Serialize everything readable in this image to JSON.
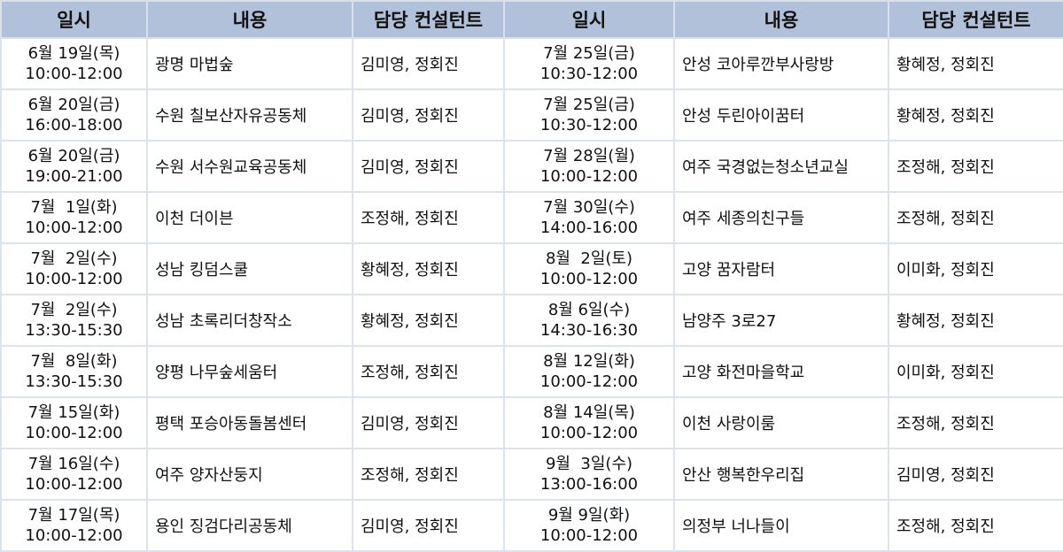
{
  "headers": [
    "일시",
    "내용",
    "담당 컨설턴트",
    "일시",
    "내용",
    "담당 컨설턴트"
  ],
  "rows": [
    {
      "left": {
        "date": "6월 19일(목)",
        "time": "10:00-12:00",
        "content": "광명 마법숲",
        "consultant": "김미영, 정회진"
      },
      "right": {
        "date": "7월 25일(금)",
        "time": "10:30-12:00",
        "content": "안성 코아루깐부사랑방",
        "consultant": "황혜정, 정회진"
      }
    },
    {
      "left": {
        "date": "6월 20일(금)",
        "time": "16:00-18:00",
        "content": "수원 칠보산자유공동체",
        "consultant": "김미영, 정회진"
      },
      "right": {
        "date": "7월 25일(금)",
        "time": "10:30-12:00",
        "content": "안성 두린아이꿈터",
        "consultant": "황혜정, 정회진"
      }
    },
    {
      "left": {
        "date": "6월 20일(금)",
        "time": "19:00-21:00",
        "content": "수원 서수원교육공동체",
        "consultant": "김미영, 정회진"
      },
      "right": {
        "date": "7월 28일(월)",
        "time": "10:00-12:00",
        "content": "여주 국경없는청소년교실",
        "consultant": "조정해, 정회진"
      }
    },
    {
      "left": {
        "date": "7월  1일(화)",
        "time": "10:00-12:00",
        "content": "이천 더이븐",
        "consultant": "조정해, 정회진"
      },
      "right": {
        "date": "7월 30일(수)",
        "time": "14:00-16:00",
        "content": "여주 세종의친구들",
        "consultant": "조정해, 정회진"
      }
    },
    {
      "left": {
        "date": "7월  2일(수)",
        "time": "10:00-12:00",
        "content": "성남 킹덤스쿨",
        "consultant": "황혜정, 정회진"
      },
      "right": {
        "date": "8월  2일(토)",
        "time": "10:00-12:00",
        "content": "고양 꿈자람터",
        "consultant": "이미화, 정회진"
      }
    },
    {
      "left": {
        "date": "7월  2일(수)",
        "time": "13:30-15:30",
        "content": "성남 초록리더창작소",
        "consultant": "황혜정, 정회진"
      },
      "right": {
        "date": "8월 6일(수)",
        "time": "14:30-16:30",
        "content": "남양주 3로27",
        "consultant": "황혜정, 정회진"
      }
    },
    {
      "left": {
        "date": "7월  8일(화)",
        "time": "13:30-15:30",
        "content": "양평 나무숲세움터",
        "consultant": "조정해, 정회진"
      },
      "right": {
        "date": "8월 12일(화)",
        "time": "10:00-12:00",
        "content": "고양 화전마을학교",
        "consultant": "이미화, 정회진"
      }
    },
    {
      "left": {
        "date": "7월 15일(화)",
        "time": "10:00-12:00",
        "content": "평택 포승아동돌봄센터",
        "consultant": "김미영, 정회진"
      },
      "right": {
        "date": "8월 14일(목)",
        "time": "10:00-12:00",
        "content": "이천 사랑이룸",
        "consultant": "조정해, 정회진"
      }
    },
    {
      "left": {
        "date": "7월 16일(수)",
        "time": "10:00-12:00",
        "content": "여주 양자산둥지",
        "consultant": "조정해, 정회진"
      },
      "right": {
        "date": "9월  3일(수)",
        "time": "13:00-16:00",
        "content": "안산 행복한우리집",
        "consultant": "김미영, 정회진"
      }
    },
    {
      "left": {
        "date": "7월 17일(목)",
        "time": "10:00-12:00",
        "content": "용인 징검다리공동체",
        "consultant": "김미영, 정회진"
      },
      "right": {
        "date": "9월 9일(화)",
        "time": "10:00-12:00",
        "content": "의정부 너나들이",
        "consultant": "조정해, 정회진"
      }
    }
  ]
}
